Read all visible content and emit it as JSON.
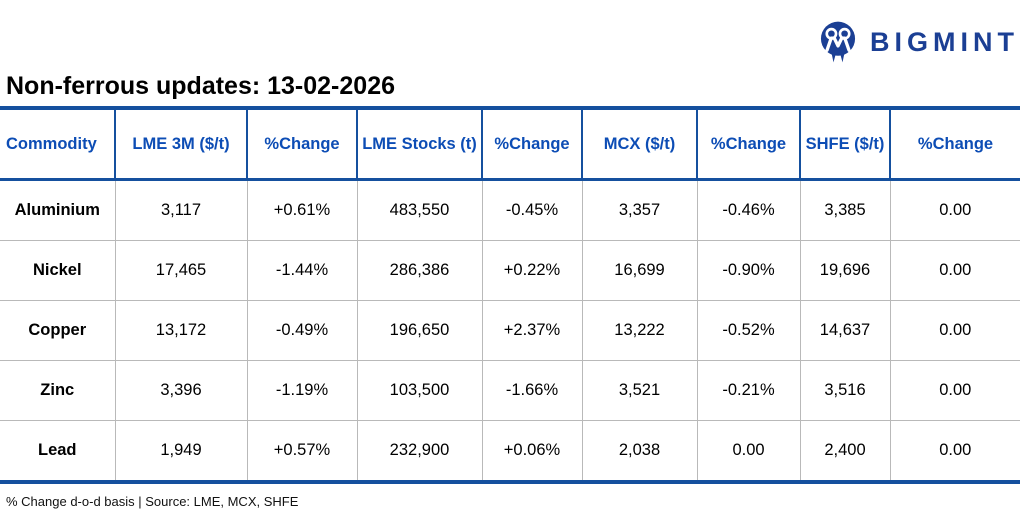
{
  "brand": {
    "name": "BIGMINT",
    "brand_color": "#1b3f94"
  },
  "title": "Non-ferrous updates: 13-02-2026",
  "colors": {
    "positive_green": "#00b050",
    "negative_red": "#fe0000",
    "header_text_blue": "#0d4db5",
    "border_blue": "#15509e",
    "grid_gray": "#b9b9b9"
  },
  "chart_data": {
    "type": "table",
    "title": "Non-ferrous updates: 13-02-2026",
    "columns": [
      "Commodity",
      "LME 3M ($/t)",
      "%Change",
      "LME Stocks (t)",
      "%Change",
      "MCX ($/t)",
      "%Change",
      "SHFE ($/t)",
      "%Change"
    ],
    "rows": [
      [
        "Aluminium",
        "3,117",
        "+0.61%",
        "483,550",
        "-0.45%",
        "3,357",
        "-0.46%",
        "3,385",
        "0.00"
      ],
      [
        "Nickel",
        "17,465",
        "-1.44%",
        "286,386",
        "+0.22%",
        "16,699",
        "-0.90%",
        "19,696",
        "0.00"
      ],
      [
        "Copper",
        "13,172",
        "-0.49%",
        "196,650",
        "+2.37%",
        "13,222",
        "-0.52%",
        "14,637",
        "0.00"
      ],
      [
        "Zinc",
        "3,396",
        "-1.19%",
        "103,500",
        "-1.66%",
        "3,521",
        "-0.21%",
        "3,516",
        "0.00"
      ],
      [
        "Lead",
        "1,949",
        "+0.57%",
        "232,900",
        "+0.06%",
        "2,038",
        "0.00",
        "2,400",
        "0.00"
      ]
    ],
    "footnote": "% Change d-o-d basis | Source: LME, MCX, SHFE",
    "legend_position": "none",
    "grid": "horizontal-and-vertical"
  },
  "footer": "% Change d-o-d basis | Source: LME, MCX, SHFE"
}
